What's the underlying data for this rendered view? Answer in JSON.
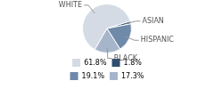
{
  "chart_data": {
    "type": "pie",
    "categories": [
      "WHITE",
      "ASIAN",
      "HISPANIC",
      "BLACK"
    ],
    "values": [
      61.8,
      1.8,
      19.1,
      17.3
    ],
    "value_labels": [
      "61.8%",
      "1.8%",
      "19.1%",
      "17.3%"
    ],
    "colors": [
      "#d5dbe5",
      "#2f4f70",
      "#6f89a9",
      "#a6b5ca"
    ],
    "legend": "bottom"
  }
}
